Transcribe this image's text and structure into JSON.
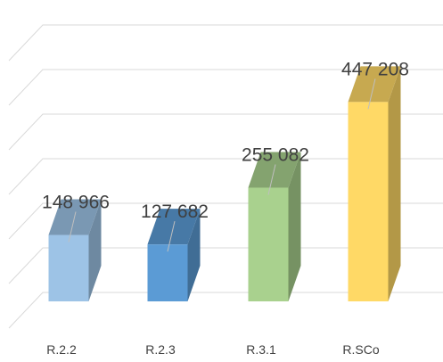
{
  "chart_data": {
    "type": "bar",
    "style": "3d-column",
    "categories": [
      "R.2.2",
      "R.2.3",
      "R.3.1",
      "R.SCo"
    ],
    "values": [
      148966,
      127682,
      255082,
      447208
    ],
    "data_labels": [
      "148 966",
      "127 682",
      "255 082",
      "447 208"
    ],
    "colors": [
      "#9DC3E6",
      "#5B9BD5",
      "#A9D18E",
      "#FFD966"
    ],
    "title": "",
    "xlabel": "",
    "ylabel": "",
    "ylim": [
      0,
      500000
    ],
    "grid": true,
    "legend": "none"
  }
}
